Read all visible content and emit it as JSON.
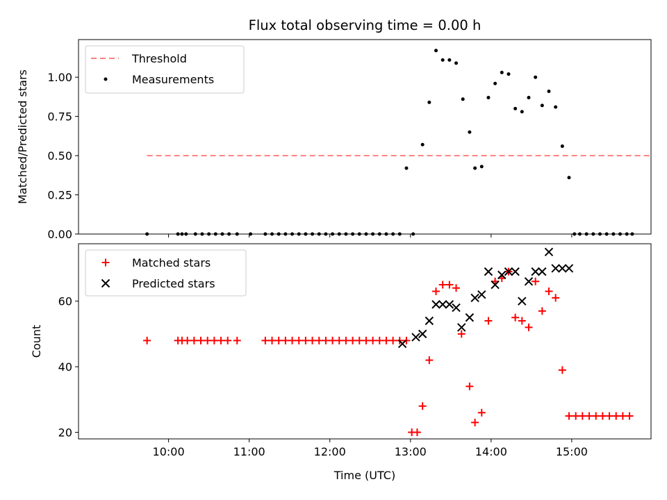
{
  "chart_data": {
    "title": "Flux total observing time = 0.00 h",
    "x_axis": {
      "label": "Time (UTC)",
      "ticks": [
        "10:00",
        "11:00",
        "12:00",
        "13:00",
        "14:00",
        "15:00"
      ],
      "tick_values": [
        600,
        660,
        720,
        780,
        840,
        900
      ],
      "xlim": [
        533,
        959
      ]
    },
    "colors": {
      "red": "#ff0000",
      "black": "#000000",
      "threshold": "#ff7f7f"
    },
    "panels": [
      {
        "id": "ratio",
        "type": "scatter",
        "ylabel": "Matched/Predicted stars",
        "ylim": [
          0,
          1.24
        ],
        "yticks": [
          "0.00",
          "0.25",
          "0.50",
          "0.75",
          "1.00"
        ],
        "ytick_values": [
          0,
          0.25,
          0.5,
          0.75,
          1.0
        ],
        "legend_position": "upper-left",
        "series": [
          {
            "name": "Threshold",
            "kind": "dashed-line",
            "color": "#ff7f7f",
            "x": [
              584,
              959
            ],
            "y": [
              0.5,
              0.5
            ]
          },
          {
            "name": "Measurements",
            "kind": "dot",
            "color": "#000000",
            "x": [
              584,
              607,
              610,
              613,
              620,
              625,
              630,
              635,
              640,
              645,
              651,
              661,
              672,
              677,
              682,
              687,
              692,
              697,
              702,
              707,
              712,
              717,
              722,
              727,
              732,
              737,
              742,
              747,
              752,
              757,
              762,
              767,
              772,
              777,
              782,
              789,
              794,
              799,
              804,
              809,
              814,
              819,
              824,
              828,
              833,
              838,
              843,
              848,
              853,
              858,
              863,
              868,
              873,
              878,
              883,
              888,
              893,
              898,
              902,
              906,
              911,
              916,
              921,
              926,
              931,
              936,
              941,
              945
            ],
            "y": [
              0,
              0,
              0,
              0,
              0,
              0,
              0,
              0,
              0,
              0,
              0,
              0,
              0,
              0,
              0,
              0,
              0,
              0,
              0,
              0,
              0,
              0,
              0,
              0,
              0,
              0,
              0,
              0,
              0,
              0,
              0,
              0,
              0,
              0.42,
              0,
              0.57,
              0.84,
              1.17,
              1.11,
              1.11,
              1.09,
              0.86,
              0.65,
              0.42,
              0.43,
              0.87,
              0.96,
              1.03,
              1.02,
              0.8,
              0.78,
              0.87,
              1.0,
              0.82,
              0.91,
              0.81,
              0.56,
              0.36,
              0,
              0,
              0,
              0,
              0,
              0,
              0,
              0,
              0,
              0
            ]
          }
        ]
      },
      {
        "id": "counts",
        "type": "scatter",
        "ylabel": "Count",
        "ylim": [
          18,
          77.5
        ],
        "yticks": [
          "20",
          "40",
          "60"
        ],
        "ytick_values": [
          20,
          40,
          60
        ],
        "legend_position": "upper-left",
        "series": [
          {
            "name": "Matched stars",
            "kind": "plus",
            "color": "#ff0000",
            "x": [
              584,
              607,
              610,
              614,
              619,
              624,
              629,
              634,
              639,
              644,
              651,
              672,
              677,
              682,
              687,
              692,
              697,
              702,
              707,
              712,
              717,
              722,
              727,
              732,
              737,
              742,
              747,
              752,
              757,
              762,
              767,
              772,
              777,
              781,
              785,
              789,
              794,
              799,
              804,
              809,
              814,
              818,
              824,
              828,
              833,
              838,
              843,
              848,
              853,
              858,
              863,
              868,
              873,
              878,
              883,
              888,
              893,
              898,
              903,
              908,
              913,
              918,
              923,
              928,
              933,
              938,
              943
            ],
            "y": [
              48,
              48,
              48,
              48,
              48,
              48,
              48,
              48,
              48,
              48,
              48,
              48,
              48,
              48,
              48,
              48,
              48,
              48,
              48,
              48,
              48,
              48,
              48,
              48,
              48,
              48,
              48,
              48,
              48,
              48,
              48,
              48,
              48,
              20,
              20,
              28,
              42,
              63,
              65,
              65,
              64,
              50,
              34,
              23,
              26,
              54,
              66,
              67,
              69,
              55,
              54,
              52,
              66,
              57,
              63,
              61,
              39,
              25,
              25,
              25,
              25,
              25,
              25,
              25,
              25,
              25,
              25
            ]
          },
          {
            "name": "Predicted stars",
            "kind": "cross",
            "color": "#000000",
            "x": [
              774,
              784,
              789,
              794,
              799,
              804,
              809,
              814,
              818,
              824,
              828,
              833,
              838,
              843,
              848,
              853,
              858,
              863,
              868,
              873,
              878,
              883,
              888,
              893,
              898
            ],
            "y": [
              47,
              49,
              50,
              54,
              59,
              59,
              59,
              58,
              52,
              55,
              61,
              62,
              69,
              65,
              68,
              69,
              69,
              60,
              66,
              69,
              69,
              75,
              70,
              70,
              70
            ]
          }
        ]
      }
    ]
  }
}
